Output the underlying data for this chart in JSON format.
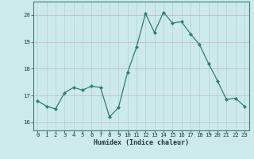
{
  "x": [
    0,
    1,
    2,
    3,
    4,
    5,
    6,
    7,
    8,
    9,
    10,
    11,
    12,
    13,
    14,
    15,
    16,
    17,
    18,
    19,
    20,
    21,
    22,
    23
  ],
  "y": [
    16.8,
    16.6,
    16.5,
    17.1,
    17.3,
    17.2,
    17.35,
    17.3,
    16.2,
    16.55,
    17.85,
    18.8,
    20.05,
    19.35,
    20.1,
    19.7,
    19.75,
    19.3,
    18.9,
    18.2,
    17.55,
    16.85,
    16.9,
    16.6
  ],
  "xlabel": "Humidex (Indice chaleur)",
  "ylim": [
    15.7,
    20.5
  ],
  "xlim": [
    -0.5,
    23.5
  ],
  "line_color": "#2e7d6e",
  "marker_color": "#2e7d6e",
  "bg_color": "#cceaea",
  "grid_color_h": "#c8b8c8",
  "grid_color_v": "#b8d4d4",
  "yticks": [
    16,
    17,
    18,
    19,
    20
  ],
  "xticks": [
    0,
    1,
    2,
    3,
    4,
    5,
    6,
    7,
    8,
    9,
    10,
    11,
    12,
    13,
    14,
    15,
    16,
    17,
    18,
    19,
    20,
    21,
    22,
    23
  ],
  "xlabel_fontsize": 6.0,
  "tick_fontsize": 5.2
}
